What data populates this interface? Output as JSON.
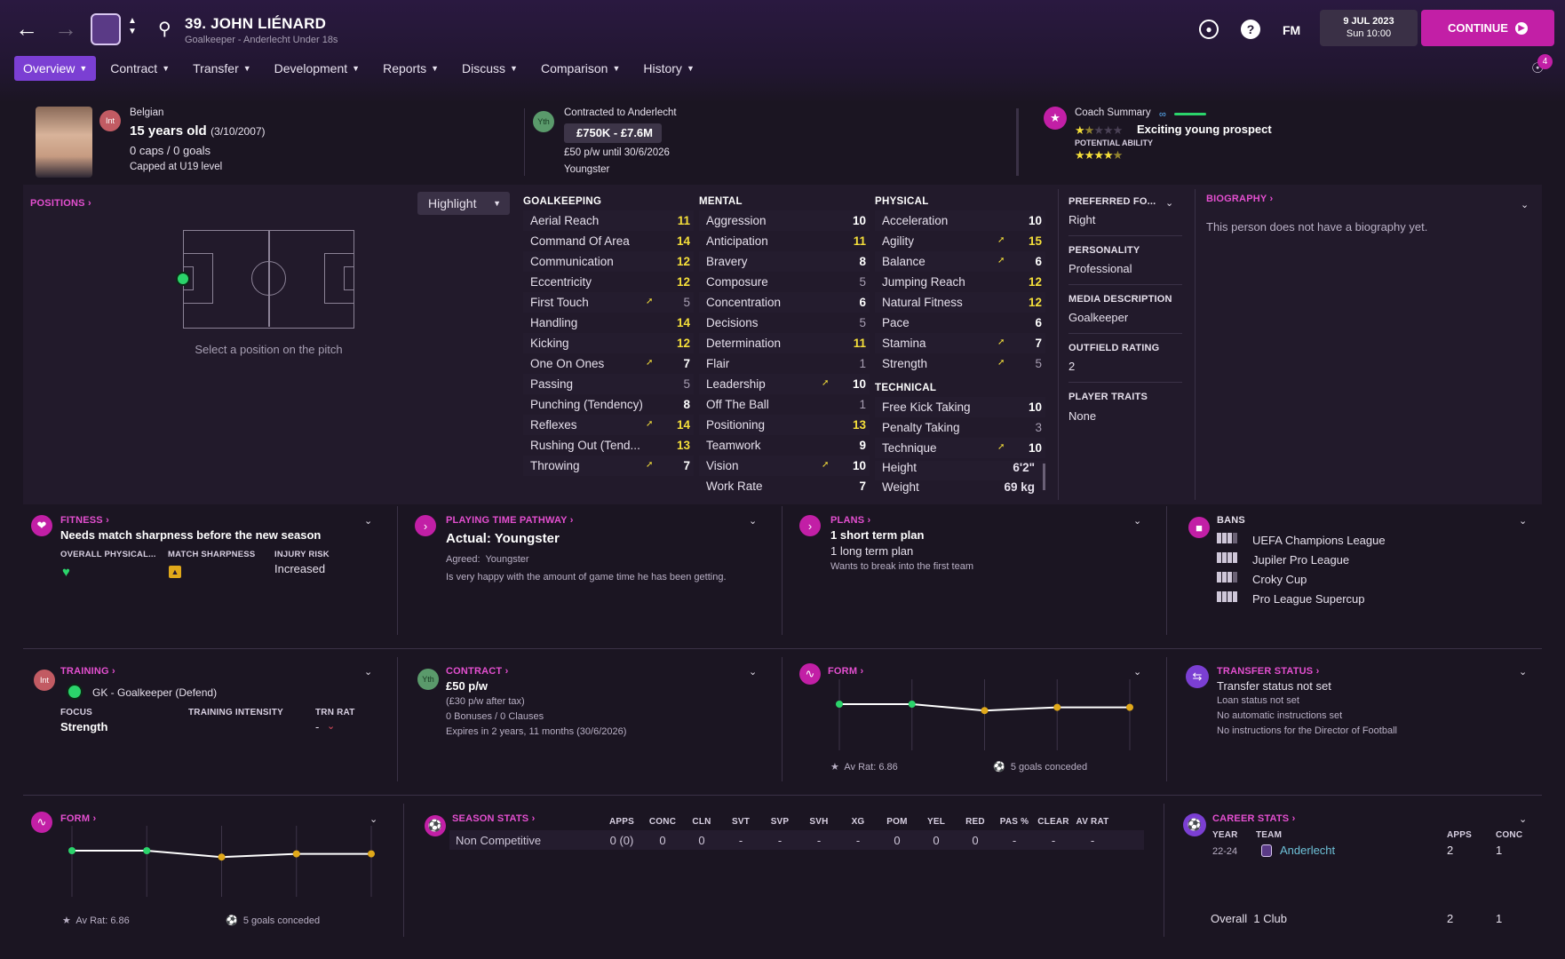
{
  "header": {
    "title": "39. JOHN LIÉNARD",
    "subtitle": "Goalkeeper - Anderlecht Under 18s",
    "date": "9 JUL 2023",
    "time": "Sun 10:00",
    "fm_label": "FM",
    "continue_label": "CONTINUE",
    "notifications": "4"
  },
  "tabs": [
    {
      "label": "Overview",
      "active": true
    },
    {
      "label": "Contract"
    },
    {
      "label": "Transfer"
    },
    {
      "label": "Development"
    },
    {
      "label": "Reports"
    },
    {
      "label": "Discuss"
    },
    {
      "label": "Comparison"
    },
    {
      "label": "History"
    }
  ],
  "profile": {
    "nationality": "Belgian",
    "age": "15 years old",
    "dob": "(3/10/2007)",
    "caps": "0 caps / 0 goals",
    "capped": "Capped at U19 level",
    "int_badge": "Int",
    "yth_badge": "Yth",
    "contract_title": "Contracted to Anderlecht",
    "value": "£750K - £7.6M",
    "wage": "£50 p/w until 30/6/2026",
    "status": "Youngster",
    "coach_label": "Coach Summary",
    "coach_summary": "Exciting young prospect",
    "potential_label": "POTENTIAL ABILITY",
    "current_stars": 1.5,
    "potential_stars": 4.5
  },
  "positions": {
    "title": "POSITIONS",
    "highlight": "Highlight",
    "hint": "Select a position on the pitch"
  },
  "attributes": {
    "goalkeeping_title": "GOALKEEPING",
    "goalkeeping": [
      {
        "name": "Aerial Reach",
        "value": "11",
        "c": "hi"
      },
      {
        "name": "Command Of Area",
        "value": "14",
        "c": "hi"
      },
      {
        "name": "Communication",
        "value": "12",
        "c": "hi"
      },
      {
        "name": "Eccentricity",
        "value": "12",
        "c": "hi"
      },
      {
        "name": "First Touch",
        "value": "5",
        "c": "lo",
        "up": true
      },
      {
        "name": "Handling",
        "value": "14",
        "c": "hi"
      },
      {
        "name": "Kicking",
        "value": "12",
        "c": "hi"
      },
      {
        "name": "One On Ones",
        "value": "7",
        "c": "w",
        "up": true
      },
      {
        "name": "Passing",
        "value": "5",
        "c": "lo"
      },
      {
        "name": "Punching (Tendency)",
        "value": "8",
        "c": "w"
      },
      {
        "name": "Reflexes",
        "value": "14",
        "c": "hi",
        "up": true
      },
      {
        "name": "Rushing Out (Tend...",
        "value": "13",
        "c": "hi"
      },
      {
        "name": "Throwing",
        "value": "7",
        "c": "w",
        "up": true
      }
    ],
    "mental_title": "MENTAL",
    "mental": [
      {
        "name": "Aggression",
        "value": "10",
        "c": "w"
      },
      {
        "name": "Anticipation",
        "value": "11",
        "c": "hi"
      },
      {
        "name": "Bravery",
        "value": "8",
        "c": "w"
      },
      {
        "name": "Composure",
        "value": "5",
        "c": "lo"
      },
      {
        "name": "Concentration",
        "value": "6",
        "c": "w"
      },
      {
        "name": "Decisions",
        "value": "5",
        "c": "lo"
      },
      {
        "name": "Determination",
        "value": "11",
        "c": "hi"
      },
      {
        "name": "Flair",
        "value": "1",
        "c": "lo"
      },
      {
        "name": "Leadership",
        "value": "10",
        "c": "w",
        "up": true
      },
      {
        "name": "Off The Ball",
        "value": "1",
        "c": "lo"
      },
      {
        "name": "Positioning",
        "value": "13",
        "c": "hi"
      },
      {
        "name": "Teamwork",
        "value": "9",
        "c": "w"
      },
      {
        "name": "Vision",
        "value": "10",
        "c": "w",
        "up": true
      },
      {
        "name": "Work Rate",
        "value": "7",
        "c": "w"
      }
    ],
    "physical_title": "PHYSICAL",
    "physical": [
      {
        "name": "Acceleration",
        "value": "10",
        "c": "w"
      },
      {
        "name": "Agility",
        "value": "15",
        "c": "hi",
        "up": true
      },
      {
        "name": "Balance",
        "value": "6",
        "c": "w",
        "up": true
      },
      {
        "name": "Jumping Reach",
        "value": "12",
        "c": "hi"
      },
      {
        "name": "Natural Fitness",
        "value": "12",
        "c": "hi"
      },
      {
        "name": "Pace",
        "value": "6",
        "c": "w"
      },
      {
        "name": "Stamina",
        "value": "7",
        "c": "w",
        "up": true
      },
      {
        "name": "Strength",
        "value": "5",
        "c": "lo",
        "up": true
      }
    ],
    "technical_title": "TECHNICAL",
    "technical": [
      {
        "name": "Free Kick Taking",
        "value": "10",
        "c": "w"
      },
      {
        "name": "Penalty Taking",
        "value": "3",
        "c": "lo"
      },
      {
        "name": "Technique",
        "value": "10",
        "c": "w",
        "up": true
      }
    ],
    "height_label": "Height",
    "height": "6'2\"",
    "weight_label": "Weight",
    "weight": "69 kg"
  },
  "info": {
    "preferred_foot_label": "PREFERRED FO...",
    "preferred_foot": "Right",
    "personality_label": "PERSONALITY",
    "personality": "Professional",
    "media_label": "MEDIA DESCRIPTION",
    "media": "Goalkeeper",
    "outfield_label": "OUTFIELD RATING",
    "outfield": "2",
    "traits_label": "PLAYER TRAITS",
    "traits": "None",
    "bio_title": "BIOGRAPHY",
    "bio_text": "This person does not have a biography yet."
  },
  "fitness": {
    "title": "FITNESS",
    "headline": "Needs match sharpness before the new season",
    "col1": "OVERALL PHYSICAL...",
    "col2": "MATCH SHARPNESS",
    "col3": "INJURY RISK",
    "injury": "Increased"
  },
  "playing_time": {
    "title": "PLAYING TIME PATHWAY",
    "actual": "Actual: Youngster",
    "agreed_label": "Agreed:",
    "agreed": "Youngster",
    "note": "Is very happy with the amount of game time he has been getting."
  },
  "plans": {
    "title": "PLANS",
    "short": "1 short term plan",
    "long": "1 long term plan",
    "note": "Wants to break into the first team"
  },
  "bans": {
    "title": "BANS",
    "items": [
      "UEFA Champions League",
      "Jupiler Pro League",
      "Croky Cup",
      "Pro League Supercup"
    ]
  },
  "training": {
    "title": "TRAINING",
    "role": "GK - Goalkeeper (Defend)",
    "focus_label": "FOCUS",
    "focus": "Strength",
    "intensity_label": "TRAINING INTENSITY",
    "trn_label": "TRN RAT",
    "trn_value": "-"
  },
  "contract": {
    "title": "CONTRACT",
    "wage": "£50 p/w",
    "after_tax": "(£30 p/w after tax)",
    "bonuses": "0 Bonuses / 0 Clauses",
    "expires": "Expires in 2 years, 11 months (30/6/2026)"
  },
  "form": {
    "title": "FORM",
    "av_rat": "Av Rat: 6.86",
    "conceded": "5 goals conceded",
    "points": [
      {
        "v": 3,
        "c": "green"
      },
      {
        "v": 3,
        "c": "green"
      },
      {
        "v": 2.6,
        "c": "amber"
      },
      {
        "v": 2.8,
        "c": "amber"
      },
      {
        "v": 2.8,
        "c": "amber"
      }
    ]
  },
  "transfer_status": {
    "title": "TRANSFER STATUS",
    "line1": "Transfer status not set",
    "line2": "Loan status not set",
    "line3": "No automatic instructions set",
    "line4": "No instructions for the Director of Football"
  },
  "season_stats": {
    "title": "SEASON STATS",
    "headers": [
      "APPS",
      "CONC",
      "CLN",
      "SVT",
      "SVP",
      "SVH",
      "XG",
      "POM",
      "YEL",
      "RED",
      "PAS %",
      "CLEAR",
      "AV RAT"
    ],
    "row_label": "Non Competitive",
    "row": [
      "0 (0)",
      "0",
      "0",
      "-",
      "-",
      "-",
      "-",
      "0",
      "0",
      "0",
      "-",
      "-",
      "-"
    ]
  },
  "career_stats": {
    "title": "CAREER STATS",
    "h_year": "YEAR",
    "h_team": "TEAM",
    "h_apps": "APPS",
    "h_conc": "CONC",
    "year": "22-24",
    "team": "Anderlecht",
    "apps": "2",
    "conc": "1",
    "overall_label": "Overall",
    "overall_clubs": "1 Club",
    "overall_apps": "2",
    "overall_conc": "1"
  },
  "colors": {
    "accent": "#c21fa6",
    "highlight": "#f5df3a",
    "link": "#e44fd0",
    "green": "#2bd46b",
    "amber": "#e0a81a"
  }
}
